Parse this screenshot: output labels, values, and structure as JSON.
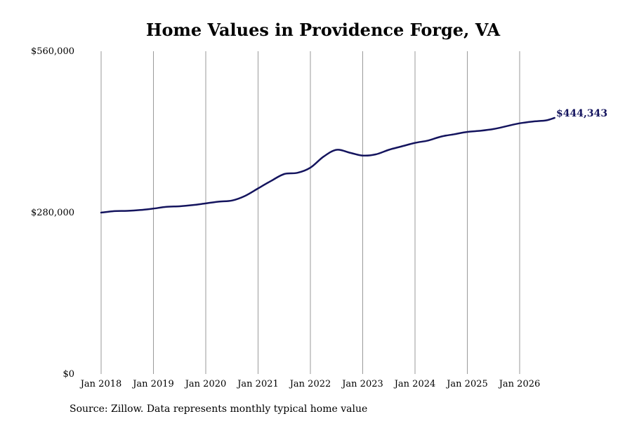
{
  "chart_data": {
    "type": "line",
    "title": "Home Values in Providence Forge, VA",
    "xlabel": "",
    "ylabel": "",
    "ylim": [
      0,
      560000
    ],
    "y_ticks": [
      {
        "value": 0,
        "label": "$0"
      },
      {
        "value": 280000,
        "label": "$280,000"
      },
      {
        "value": 560000,
        "label": "$560,000"
      }
    ],
    "x_ticks": [
      {
        "date": "2018-01",
        "label": "Jan 2018"
      },
      {
        "date": "2019-01",
        "label": "Jan 2019"
      },
      {
        "date": "2020-01",
        "label": "Jan 2020"
      },
      {
        "date": "2021-01",
        "label": "Jan 2021"
      },
      {
        "date": "2022-01",
        "label": "Jan 2022"
      },
      {
        "date": "2023-01",
        "label": "Jan 2023"
      },
      {
        "date": "2024-01",
        "label": "Jan 2024"
      },
      {
        "date": "2025-01",
        "label": "Jan 2025"
      },
      {
        "date": "2026-01",
        "label": "Jan 2026"
      }
    ],
    "grid": "vertical",
    "line_color": "#14145e",
    "series": [
      {
        "points": [
          {
            "date": "2018-01",
            "value": 280000
          },
          {
            "date": "2018-04",
            "value": 282500
          },
          {
            "date": "2018-07",
            "value": 283000
          },
          {
            "date": "2018-10",
            "value": 284500
          },
          {
            "date": "2019-01",
            "value": 287000
          },
          {
            "date": "2019-04",
            "value": 290000
          },
          {
            "date": "2019-07",
            "value": 291000
          },
          {
            "date": "2019-10",
            "value": 293000
          },
          {
            "date": "2020-01",
            "value": 296000
          },
          {
            "date": "2020-04",
            "value": 299000
          },
          {
            "date": "2020-07",
            "value": 301000
          },
          {
            "date": "2020-10",
            "value": 309000
          },
          {
            "date": "2021-01",
            "value": 322000
          },
          {
            "date": "2021-04",
            "value": 335000
          },
          {
            "date": "2021-07",
            "value": 347000
          },
          {
            "date": "2021-10",
            "value": 349000
          },
          {
            "date": "2022-01",
            "value": 358000
          },
          {
            "date": "2022-04",
            "value": 377000
          },
          {
            "date": "2022-07",
            "value": 389000
          },
          {
            "date": "2022-10",
            "value": 384000
          },
          {
            "date": "2023-01",
            "value": 379000
          },
          {
            "date": "2023-04",
            "value": 381000
          },
          {
            "date": "2023-07",
            "value": 389000
          },
          {
            "date": "2023-10",
            "value": 395000
          },
          {
            "date": "2024-01",
            "value": 401000
          },
          {
            "date": "2024-04",
            "value": 405000
          },
          {
            "date": "2024-07",
            "value": 412000
          },
          {
            "date": "2024-10",
            "value": 416000
          },
          {
            "date": "2025-01",
            "value": 420000
          },
          {
            "date": "2025-04",
            "value": 422000
          },
          {
            "date": "2025-07",
            "value": 425000
          },
          {
            "date": "2025-10",
            "value": 430000
          },
          {
            "date": "2026-01",
            "value": 435000
          },
          {
            "date": "2026-04",
            "value": 438000
          },
          {
            "date": "2026-07",
            "value": 440000
          },
          {
            "date": "2026-09",
            "value": 444343
          }
        ]
      }
    ],
    "end_label": "$444,343",
    "source": "Source: Zillow. Data represents monthly typical home value"
  }
}
